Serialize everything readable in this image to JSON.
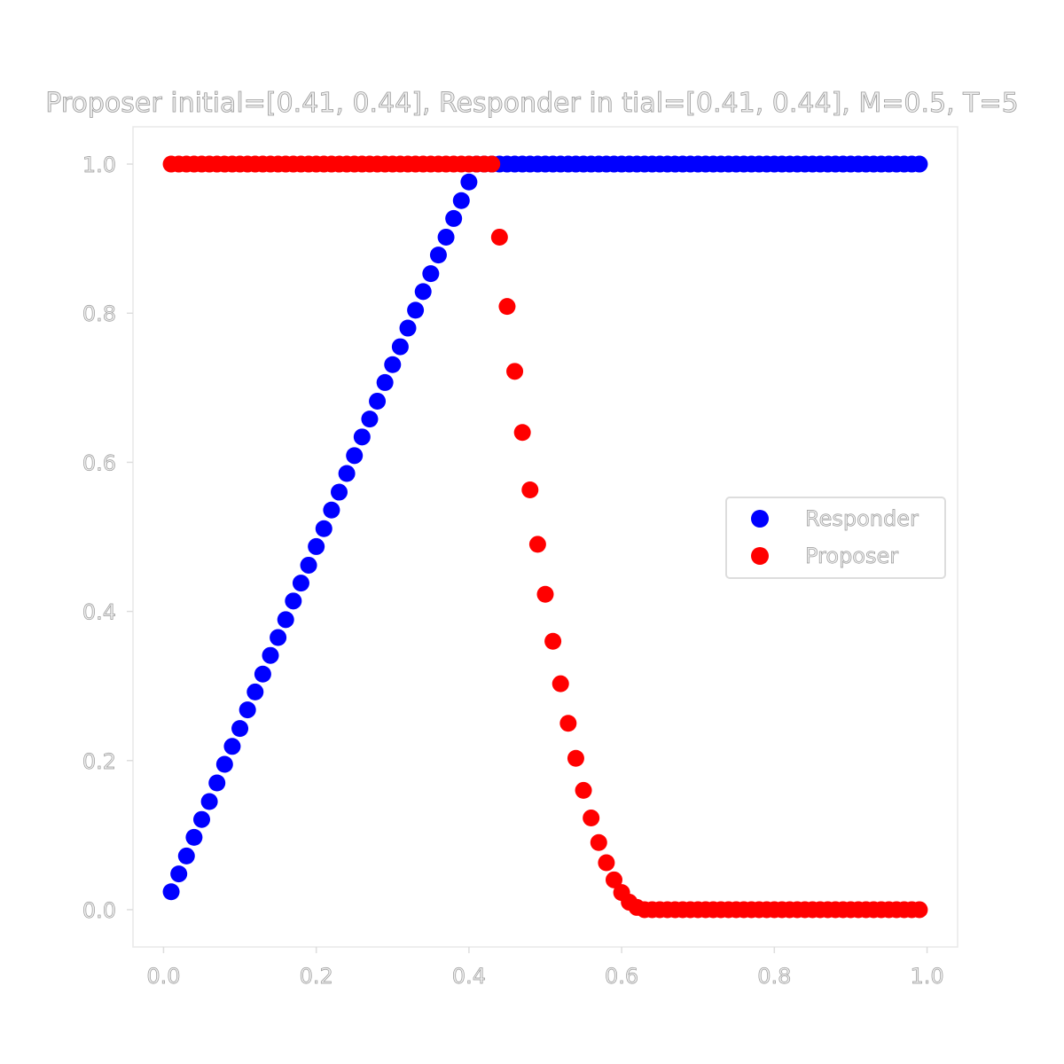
{
  "chart_data": {
    "type": "scatter",
    "title": "Proposer initial=[0.41, 0.44], Responder in tial=[0.41, 0.44], M=0.5, T=5",
    "xlabel": "",
    "ylabel": "",
    "xlim": [
      -0.04,
      1.04
    ],
    "ylim": [
      -0.05,
      1.05
    ],
    "xticks": [
      "0.0",
      "0.2",
      "0.4",
      "0.6",
      "0.8",
      "1.0"
    ],
    "yticks": [
      "0.0",
      "0.2",
      "0.4",
      "0.6",
      "0.8",
      "1.0"
    ],
    "grid": false,
    "legend_position": "center-right",
    "x": [
      0.01,
      0.02,
      0.03,
      0.04,
      0.05,
      0.06,
      0.07,
      0.08,
      0.09,
      0.1,
      0.11,
      0.12,
      0.13,
      0.14,
      0.15,
      0.16,
      0.17,
      0.18,
      0.19,
      0.2,
      0.21,
      0.22,
      0.23,
      0.24,
      0.25,
      0.26,
      0.27,
      0.28,
      0.29,
      0.3,
      0.31,
      0.32,
      0.33,
      0.34,
      0.35,
      0.36,
      0.37,
      0.38,
      0.39,
      0.4,
      0.41,
      0.42,
      0.43,
      0.44,
      0.45,
      0.46,
      0.47,
      0.48,
      0.49,
      0.5,
      0.51,
      0.52,
      0.53,
      0.54,
      0.55,
      0.56,
      0.57,
      0.58,
      0.59,
      0.6,
      0.61,
      0.62,
      0.63,
      0.64,
      0.65,
      0.66,
      0.67,
      0.68,
      0.69,
      0.7,
      0.71,
      0.72,
      0.73,
      0.74,
      0.75,
      0.76,
      0.77,
      0.78,
      0.79,
      0.8,
      0.81,
      0.82,
      0.83,
      0.84,
      0.85,
      0.86,
      0.87,
      0.88,
      0.89,
      0.9,
      0.91,
      0.92,
      0.93,
      0.94,
      0.95,
      0.96,
      0.97,
      0.98,
      0.99
    ],
    "series": [
      {
        "name": "Responder",
        "color": "#0000ff",
        "values": [
          0.024,
          0.048,
          0.072,
          0.097,
          0.121,
          0.145,
          0.17,
          0.195,
          0.219,
          0.243,
          0.268,
          0.292,
          0.316,
          0.341,
          0.365,
          0.389,
          0.414,
          0.438,
          0.462,
          0.487,
          0.511,
          0.536,
          0.56,
          0.585,
          0.609,
          0.634,
          0.658,
          0.682,
          0.707,
          0.731,
          0.755,
          0.78,
          0.804,
          0.829,
          0.853,
          0.878,
          0.902,
          0.927,
          0.951,
          0.976,
          1.0,
          1.0,
          1.0,
          1.0,
          1.0,
          1.0,
          1.0,
          1.0,
          1.0,
          1.0,
          1.0,
          1.0,
          1.0,
          1.0,
          1.0,
          1.0,
          1.0,
          1.0,
          1.0,
          1.0,
          1.0,
          1.0,
          1.0,
          1.0,
          1.0,
          1.0,
          1.0,
          1.0,
          1.0,
          1.0,
          1.0,
          1.0,
          1.0,
          1.0,
          1.0,
          1.0,
          1.0,
          1.0,
          1.0,
          1.0,
          1.0,
          1.0,
          1.0,
          1.0,
          1.0,
          1.0,
          1.0,
          1.0,
          1.0,
          1.0,
          1.0,
          1.0,
          1.0,
          1.0,
          1.0,
          1.0,
          1.0,
          1.0,
          1.0
        ]
      },
      {
        "name": "Proposer",
        "color": "#ff0000",
        "values": [
          1.0,
          1.0,
          1.0,
          1.0,
          1.0,
          1.0,
          1.0,
          1.0,
          1.0,
          1.0,
          1.0,
          1.0,
          1.0,
          1.0,
          1.0,
          1.0,
          1.0,
          1.0,
          1.0,
          1.0,
          1.0,
          1.0,
          1.0,
          1.0,
          1.0,
          1.0,
          1.0,
          1.0,
          1.0,
          1.0,
          1.0,
          1.0,
          1.0,
          1.0,
          1.0,
          1.0,
          1.0,
          1.0,
          1.0,
          1.0,
          1.0,
          1.0,
          1.0,
          0.902,
          0.809,
          0.722,
          0.64,
          0.563,
          0.49,
          0.423,
          0.36,
          0.303,
          0.25,
          0.203,
          0.16,
          0.123,
          0.09,
          0.063,
          0.04,
          0.023,
          0.01,
          0.003,
          0.0,
          0.0,
          0.0,
          0.0,
          0.0,
          0.0,
          0.0,
          0.0,
          0.0,
          0.0,
          0.0,
          0.0,
          0.0,
          0.0,
          0.0,
          0.0,
          0.0,
          0.0,
          0.0,
          0.0,
          0.0,
          0.0,
          0.0,
          0.0,
          0.0,
          0.0,
          0.0,
          0.0,
          0.0,
          0.0,
          0.0,
          0.0,
          0.0,
          0.0,
          0.0,
          0.0,
          0.0
        ]
      }
    ]
  }
}
